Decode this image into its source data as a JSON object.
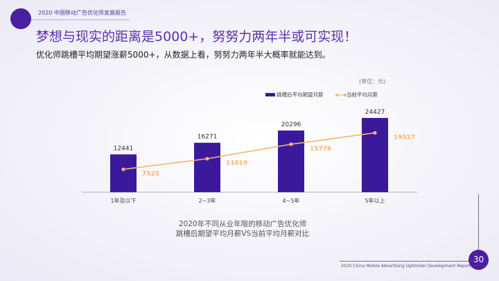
{
  "header": {
    "report_title": "2020 中国移动广告优化师发展报告"
  },
  "headline": "梦想与现实的距离是5000+，努努力两年半或可实现！",
  "subline": "优化师跳槽平均期望涨薪5000+，从数据上看，努努力两年半大概率就能达到。",
  "footer": {
    "text": "2020 China Mobile Advertising Optimizer Development Report",
    "page": "30"
  },
  "colors": {
    "bar": "#3a1a9a",
    "line": "#f5b56a",
    "accent": "#4a1fa0"
  },
  "chart_data": {
    "type": "bar+line",
    "unit": "(单位：元)",
    "categories": [
      "1年及以下",
      "2~3年",
      "4~5年",
      "5年以上"
    ],
    "series": [
      {
        "name": "跳槽后平均期望月薪",
        "type": "bar",
        "values": [
          12441,
          16271,
          20296,
          24427
        ]
      },
      {
        "name": "当前平均月薪",
        "type": "line",
        "values": [
          7525,
          11019,
          15776,
          19527
        ]
      }
    ],
    "caption": [
      "2020年不同从业年限的移动广告优化师",
      "跳槽后期望平均月薪VS当前平均月薪对比"
    ],
    "ylim": [
      0,
      25000
    ],
    "grid": false,
    "legend": "top-right"
  }
}
